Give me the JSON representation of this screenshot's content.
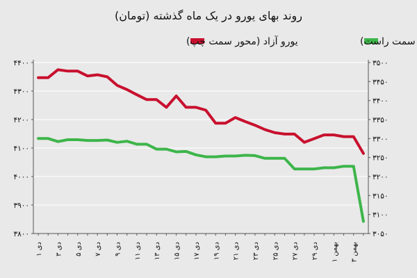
{
  "chart_data": {
    "type": "line",
    "title": "روند بهای یورو در یک ماه گذشته (تومان)",
    "categories": [
      "۱ دی",
      "",
      "۳ دی",
      "",
      "۵ دی",
      "",
      "۷ دی",
      "",
      "۹ دی",
      "",
      "۱۱ دی",
      "",
      "۱۳ دی",
      "",
      "۱۵ دی",
      "",
      "۱۷ دی",
      "",
      "۱۹ دی",
      "",
      "۲۱ دی",
      "",
      "۲۳ دی",
      "",
      "۲۵ دی",
      "",
      "۲۷ دی",
      "",
      "۲۹ دی",
      "",
      "۱ بهمن",
      "",
      "۳ بهمن",
      ""
    ],
    "left_axis": {
      "ylim": [
        3800,
        4400
      ],
      "ticks": [
        "۳۸۰۰",
        "۳۹۰۰",
        "۴۰۰۰",
        "۴۱۰۰",
        "۴۲۰۰",
        "۴۳۰۰",
        "۴۴۰۰"
      ]
    },
    "right_axis": {
      "ylim": [
        3050,
        3500
      ],
      "ticks": [
        "۳۰۵۰",
        "۳۱۰۰",
        "۳۱۵۰",
        "۳۲۰۰",
        "۳۲۵۰",
        "۳۳۰۰",
        "۳۳۵۰",
        "۳۴۰۰",
        "۳۴۵۰",
        "۳۵۰۰"
      ]
    },
    "grid": true,
    "legend_position": "top",
    "series": [
      {
        "name": "یورو آزاد (محور سمت چپ)",
        "axis": "left",
        "color": "#c8102e",
        "values": [
          4347,
          4347,
          4375,
          4370,
          4370,
          4353,
          4357,
          4350,
          4320,
          4305,
          4287,
          4270,
          4270,
          4243,
          4283,
          4243,
          4243,
          4233,
          4187,
          4187,
          4207,
          4193,
          4180,
          4165,
          4154,
          4149,
          4149,
          4120,
          4133,
          4146,
          4146,
          4140,
          4140,
          4081
        ]
      },
      {
        "name": "یورو مبادله‌ای (محور سمت راست)",
        "axis": "right",
        "color": "#3db54a",
        "values": [
          3300,
          3300,
          3292,
          3297,
          3297,
          3295,
          3295,
          3296,
          3290,
          3293,
          3285,
          3285,
          3272,
          3272,
          3265,
          3266,
          3257,
          3252,
          3252,
          3254,
          3254,
          3256,
          3255,
          3248,
          3248,
          3248,
          3220,
          3220,
          3220,
          3223,
          3223,
          3227,
          3227,
          3082
        ]
      }
    ]
  }
}
